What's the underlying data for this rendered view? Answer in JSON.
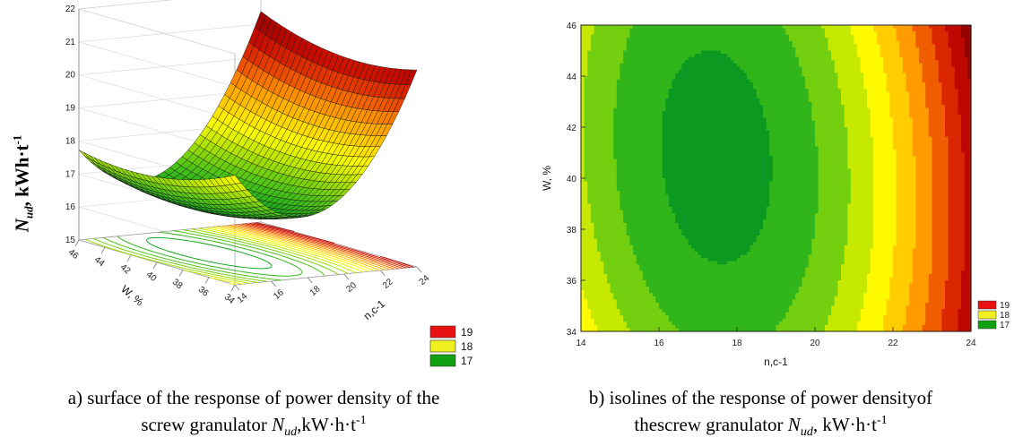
{
  "chart_data": [
    {
      "type": "surface3d",
      "panel": "a",
      "zlabel": {
        "main": "N",
        "sub": "ud",
        "unit": ", kWh·t",
        "sup": "-1"
      },
      "xlabel": "n,c-1",
      "ylabel": "W, %",
      "x_ticks": [
        "14",
        "16",
        "18",
        "20",
        "22",
        "24"
      ],
      "y_ticks": [
        "34",
        "36",
        "38",
        "40",
        "42",
        "44",
        "46"
      ],
      "z_ticks": [
        "15",
        "16",
        "17",
        "18",
        "19",
        "20",
        "21",
        "22"
      ],
      "xlim": [
        14,
        24
      ],
      "ylim": [
        34,
        46
      ],
      "zlim": [
        15,
        22
      ],
      "legend": {
        "placement": "bottom-right",
        "entries": [
          {
            "label": "19",
            "color": "#e81010"
          },
          {
            "label": "18",
            "color": "#f0f020"
          },
          {
            "label": "17",
            "color": "#10a010"
          }
        ]
      }
    },
    {
      "type": "contour",
      "panel": "b",
      "xlabel": "n,c-1",
      "ylabel": "W, %",
      "x_ticks": [
        "14",
        "16",
        "18",
        "20",
        "22",
        "24"
      ],
      "y_ticks": [
        "34",
        "36",
        "38",
        "40",
        "42",
        "44",
        "46"
      ],
      "xlim": [
        14,
        24
      ],
      "ylim": [
        34,
        46
      ],
      "legend": {
        "placement": "bottom-right",
        "entries": [
          {
            "label": "19",
            "color": "#e81010"
          },
          {
            "label": "18",
            "color": "#f0f020"
          },
          {
            "label": "17",
            "color": "#10a010"
          }
        ]
      }
    }
  ],
  "captions": {
    "a": {
      "prefix": "a) surface of the response of power density of the",
      "line2": "screw granulator ",
      "sym": "N",
      "sub": "ud",
      "unit": ",kW·h·t",
      "sup": "-1"
    },
    "b": {
      "prefix": "b) isolines of the response of power densityof",
      "line2": "thescrew granulator ",
      "sym": "N",
      "sub": "ud",
      "unit": ", kW·h·t",
      "sup": "-1"
    }
  }
}
